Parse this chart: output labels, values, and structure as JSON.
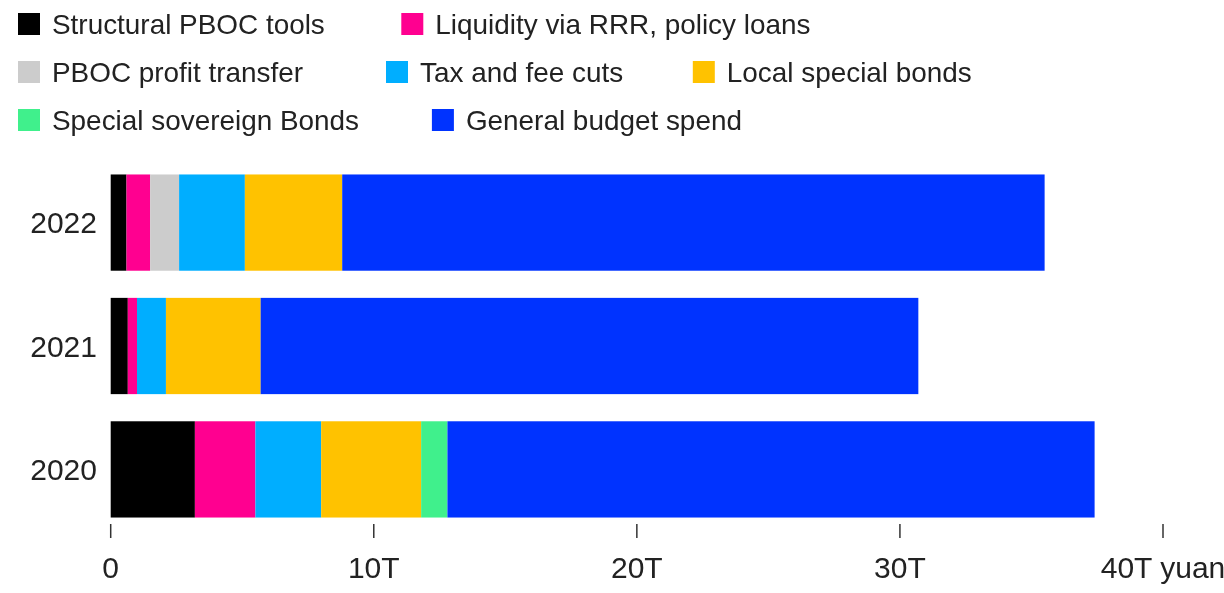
{
  "chart_data": {
    "type": "bar",
    "orientation": "horizontal",
    "stacked": true,
    "legend": "top",
    "grid": false,
    "categories": [
      "2022",
      "2021",
      "2020"
    ],
    "series": [
      {
        "name": "Structural PBOC tools",
        "color": "#000000",
        "values": [
          0.6,
          0.65,
          3.2
        ]
      },
      {
        "name": "Liquidity via RRR, policy loans",
        "color": "#ff0090",
        "values": [
          0.9,
          0.35,
          2.3
        ]
      },
      {
        "name": "PBOC profit transfer",
        "color": "#cccccc",
        "values": [
          1.1,
          0,
          0
        ]
      },
      {
        "name": "Tax and fee cuts",
        "color": "#00aeff",
        "values": [
          2.5,
          1.1,
          2.5
        ]
      },
      {
        "name": "Local special bonds",
        "color": "#ffc200",
        "values": [
          3.7,
          3.6,
          3.8
        ]
      },
      {
        "name": "Special sovereign Bonds",
        "color": "#40f08c",
        "values": [
          0,
          0,
          1.0
        ]
      },
      {
        "name": "General budget spend",
        "color": "#0033ff",
        "values": [
          26.7,
          25.0,
          24.6
        ]
      }
    ],
    "xlim": [
      0,
      40
    ],
    "xticks": [
      0,
      {
        "value": 10,
        "label": "10T"
      },
      {
        "value": 20,
        "label": "20T"
      },
      {
        "value": 30,
        "label": "30T"
      },
      {
        "value": 40,
        "label": "40T yuan"
      }
    ]
  }
}
